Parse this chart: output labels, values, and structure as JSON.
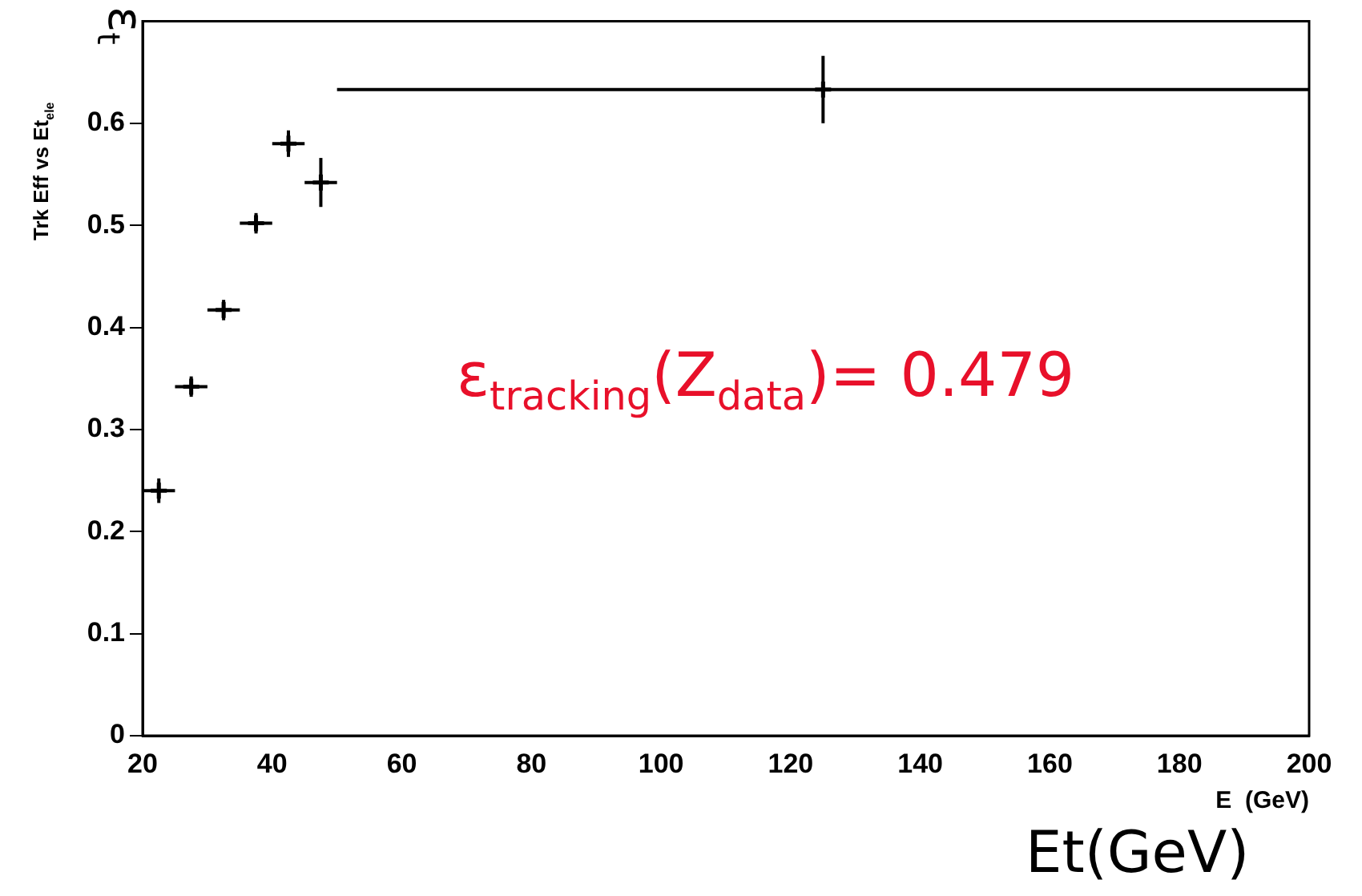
{
  "chart_data": {
    "type": "scatter",
    "xlabel": "E  (GeV)",
    "ylabel": "Trk Eff vs Et$_{ele}$",
    "x": [
      22.5,
      27.5,
      32.5,
      37.5,
      42.5,
      47.5,
      125
    ],
    "values": [
      0.24,
      0.342,
      0.417,
      0.502,
      0.58,
      0.542,
      0.633
    ],
    "errors": [
      0.012,
      0.01,
      0.01,
      0.01,
      0.013,
      0.024,
      0.033
    ],
    "xerrors": [
      2.5,
      2.5,
      2.5,
      2.5,
      2.5,
      2.5,
      75
    ],
    "color": "#000000",
    "marker": "cross",
    "grid": false,
    "legend": false,
    "xlim": [
      20,
      200
    ],
    "xticks": [
      20,
      40,
      60,
      80,
      100,
      120,
      140,
      160,
      180,
      200
    ],
    "ylim": [
      0,
      0.7
    ],
    "yticks": [
      0,
      0.1,
      0.2,
      0.3,
      0.4,
      0.5,
      0.6
    ],
    "annotations": [
      "ε$_{tracking}$(Z$_{data}$)= 0.479",
      "ε$_{t}$",
      "Et(GeV)"
    ]
  }
}
